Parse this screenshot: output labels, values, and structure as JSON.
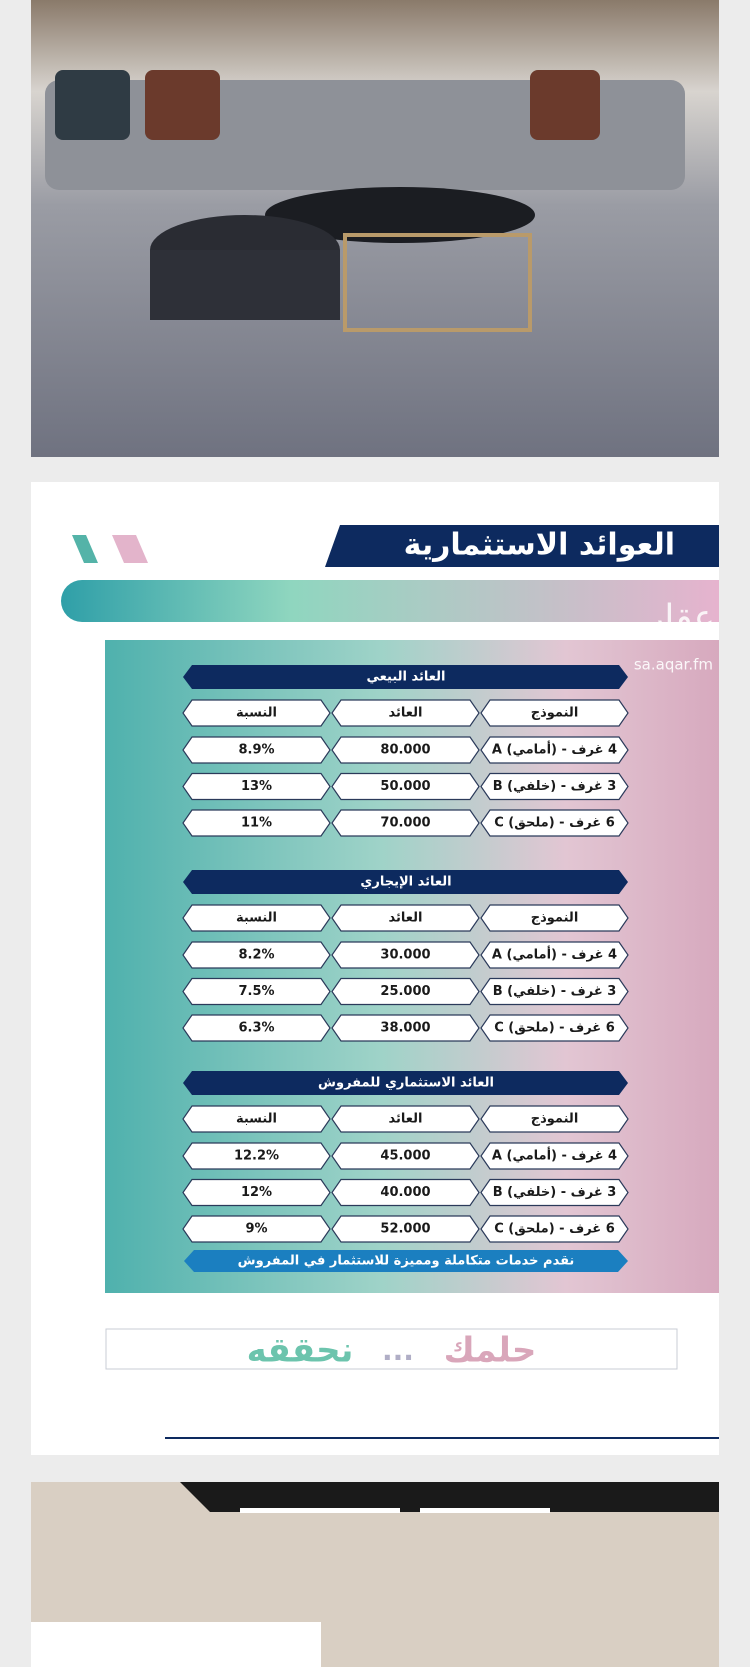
{
  "title": "العوائد الاستثمارية",
  "watermark": {
    "brand": "عقار",
    "url": "sa.aqar.fm"
  },
  "tables": [
    {
      "title": "العائد البيعي",
      "columns": [
        "النموذج",
        "العائد",
        "النسبة"
      ],
      "rows": [
        [
          "A (أمامي) - 4 غرف",
          "80.000",
          "8.9%"
        ],
        [
          "B (خلفي) - 3 غرف",
          "50.000",
          "13%"
        ],
        [
          "C (ملحق) - 6 غرف",
          "70.000",
          "11%"
        ]
      ]
    },
    {
      "title": "العائد الإيجاري",
      "columns": [
        "النموذج",
        "العائد",
        "النسبة"
      ],
      "rows": [
        [
          "A (أمامي) - 4 غرف",
          "30.000",
          "8.2%"
        ],
        [
          "B (خلفي) - 3 غرف",
          "25.000",
          "7.5%"
        ],
        [
          "C (ملحق) - 6 غرف",
          "38.000",
          "6.3%"
        ]
      ]
    },
    {
      "title": "العائد الاستثماري للمفروش",
      "columns": [
        "النموذج",
        "العائد",
        "النسبة"
      ],
      "rows": [
        [
          "A (أمامي) - 4 غرف",
          "45.000",
          "12.2%"
        ],
        [
          "B (خلفي) - 3 غرف",
          "40.000",
          "12%"
        ],
        [
          "C (ملحق) - 6 غرف",
          "52.000",
          "9%"
        ]
      ]
    }
  ],
  "note": "نقدم خدمات متكاملة ومميزة للاستثمار في المفروش",
  "slogan": {
    "part1": "حلمك",
    "separator": "...",
    "part2": "نحققه"
  }
}
